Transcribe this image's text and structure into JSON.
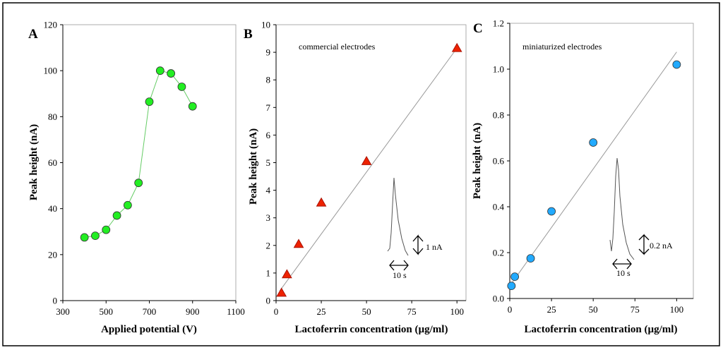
{
  "chart_data": [
    {
      "panel": "A",
      "type": "line",
      "xlabel": "Applied potential (V)",
      "ylabel": "Peak height (nA)",
      "xlim": [
        300,
        1100
      ],
      "ylim": [
        0,
        120
      ],
      "xticks": [
        "300",
        "500",
        "700",
        "900",
        "1100"
      ],
      "yticks": [
        "0",
        "20",
        "40",
        "60",
        "80",
        "100",
        "120"
      ],
      "marker": "circle",
      "marker_color": "#22ee22",
      "line_color": "#66cc66",
      "series": [
        {
          "name": "Peak height",
          "x": [
            400,
            450,
            500,
            550,
            600,
            650,
            700,
            750,
            800,
            850,
            900
          ],
          "y": [
            27.5,
            28.2,
            30.8,
            37.0,
            41.5,
            51.2,
            86.5,
            100.0,
            98.8,
            93.0,
            84.5
          ]
        }
      ]
    },
    {
      "panel": "B",
      "type": "scatter",
      "title": "commercial electrodes",
      "xlabel": "Lactoferrin concentration (µg/ml)",
      "ylabel": "Peak height (nA)",
      "xlim": [
        0,
        105
      ],
      "ylim": [
        0,
        10
      ],
      "xticks": [
        "0",
        "25",
        "50",
        "75",
        "100"
      ],
      "yticks": [
        "0",
        "1",
        "2",
        "3",
        "4",
        "5",
        "6",
        "7",
        "8",
        "9",
        "10"
      ],
      "marker": "triangle",
      "marker_color": "#ee2200",
      "series": [
        {
          "name": "commercial electrodes",
          "x": [
            3,
            6,
            12.5,
            25,
            50,
            100
          ],
          "y": [
            0.28,
            0.95,
            2.05,
            3.55,
            5.05,
            9.15
          ]
        }
      ],
      "fit_line": {
        "x": [
          2,
          100
        ],
        "y": [
          0.35,
          9.15
        ]
      },
      "scalebar_current": "1 nA",
      "scalebar_time": "10 s"
    },
    {
      "panel": "C",
      "type": "scatter",
      "title": "miniaturized electrodes",
      "xlabel": "Lactoferrin concentration (µg/ml)",
      "ylabel": "Peak height (nA)",
      "xlim": [
        0,
        110
      ],
      "ylim": [
        0,
        1.2
      ],
      "xticks": [
        "0",
        "25",
        "50",
        "75",
        "100"
      ],
      "yticks": [
        "0.0",
        "0.2",
        "0.4",
        "0.6",
        "0.8",
        "1.0",
        "1.2"
      ],
      "marker": "circle",
      "marker_color": "#22aaff",
      "series": [
        {
          "name": "miniaturized electrodes",
          "x": [
            1,
            3,
            12.5,
            25,
            50,
            100
          ],
          "y": [
            0.055,
            0.095,
            0.175,
            0.38,
            0.68,
            1.02
          ]
        }
      ],
      "fit_line": {
        "x": [
          1,
          100
        ],
        "y": [
          0.065,
          1.075
        ]
      },
      "scalebar_current": "0.2 nA",
      "scalebar_time": "10 s"
    }
  ]
}
